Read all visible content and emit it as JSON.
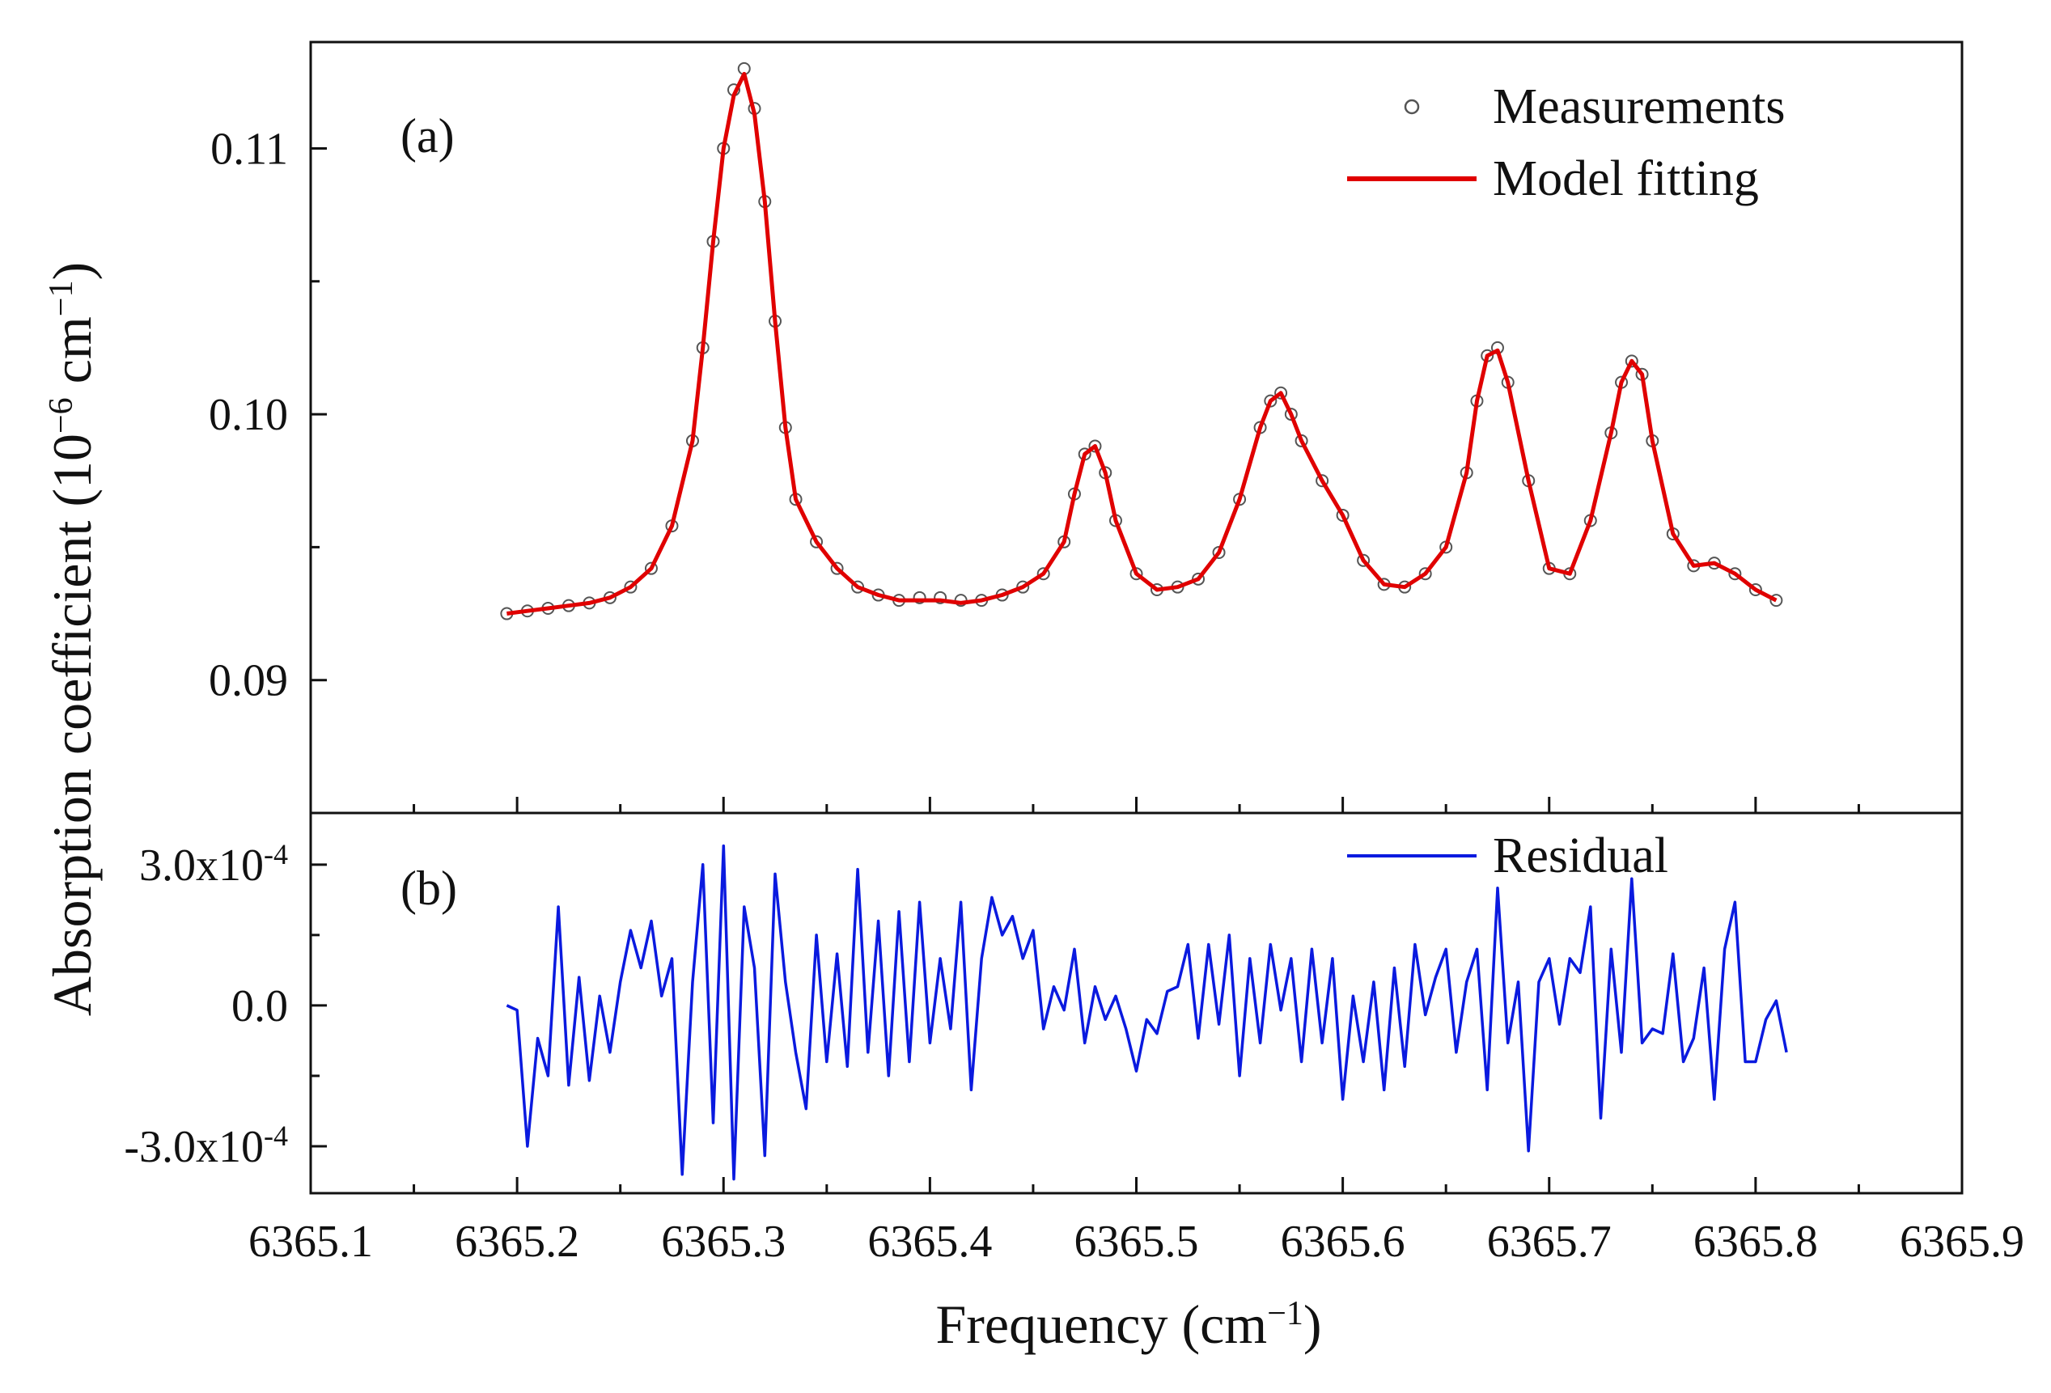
{
  "chart_data": [
    {
      "panel": "a",
      "type": "line",
      "panel_label": "(a)",
      "ylabel": "Absorption coefficient (10",
      "ylabel_sup": "−6",
      "ylabel_unit": " cm",
      "ylabel_unit_sup": "−1",
      "ylabel_close": ")",
      "xlim": [
        6365.1,
        6365.9
      ],
      "ylim": [
        0.085,
        0.114
      ],
      "yticks": [
        {
          "value": 0.09,
          "label": "0.09"
        },
        {
          "value": 0.1,
          "label": "0.10"
        },
        {
          "value": 0.11,
          "label": "0.11"
        }
      ],
      "grid": false,
      "legend_position": "top-right",
      "series": [
        {
          "name": "Measurements",
          "style": "open-circle-markers",
          "color": "#555555",
          "x": [
            6365.195,
            6365.205,
            6365.215,
            6365.225,
            6365.235,
            6365.245,
            6365.255,
            6365.265,
            6365.275,
            6365.285,
            6365.29,
            6365.295,
            6365.3,
            6365.305,
            6365.31,
            6365.315,
            6365.32,
            6365.325,
            6365.33,
            6365.335,
            6365.345,
            6365.355,
            6365.365,
            6365.375,
            6365.385,
            6365.395,
            6365.405,
            6365.415,
            6365.425,
            6365.435,
            6365.445,
            6365.455,
            6365.465,
            6365.47,
            6365.475,
            6365.48,
            6365.485,
            6365.49,
            6365.5,
            6365.51,
            6365.52,
            6365.53,
            6365.54,
            6365.55,
            6365.56,
            6365.565,
            6365.57,
            6365.575,
            6365.58,
            6365.59,
            6365.6,
            6365.61,
            6365.62,
            6365.63,
            6365.64,
            6365.65,
            6365.66,
            6365.665,
            6365.67,
            6365.675,
            6365.68,
            6365.69,
            6365.7,
            6365.71,
            6365.72,
            6365.73,
            6365.735,
            6365.74,
            6365.745,
            6365.75,
            6365.76,
            6365.77,
            6365.78,
            6365.79,
            6365.8,
            6365.81
          ],
          "y": [
            0.0925,
            0.0926,
            0.0927,
            0.0928,
            0.0929,
            0.0931,
            0.0935,
            0.0942,
            0.0958,
            0.099,
            0.1025,
            0.1065,
            0.11,
            0.1122,
            0.113,
            0.1115,
            0.108,
            0.1035,
            0.0995,
            0.0968,
            0.0952,
            0.0942,
            0.0935,
            0.0932,
            0.093,
            0.0931,
            0.0931,
            0.093,
            0.093,
            0.0932,
            0.0935,
            0.094,
            0.0952,
            0.097,
            0.0985,
            0.0988,
            0.0978,
            0.096,
            0.094,
            0.0934,
            0.0935,
            0.0938,
            0.0948,
            0.0968,
            0.0995,
            0.1005,
            0.1008,
            0.1,
            0.099,
            0.0975,
            0.0962,
            0.0945,
            0.0936,
            0.0935,
            0.094,
            0.095,
            0.0978,
            0.1005,
            0.1022,
            0.1025,
            0.1012,
            0.0975,
            0.0942,
            0.094,
            0.096,
            0.0993,
            0.1012,
            0.102,
            0.1015,
            0.099,
            0.0955,
            0.0943,
            0.0944,
            0.094,
            0.0934,
            0.093
          ]
        },
        {
          "name": "Model fitting",
          "style": "line",
          "color": "#e00000",
          "x": [
            6365.195,
            6365.205,
            6365.215,
            6365.225,
            6365.235,
            6365.245,
            6365.255,
            6365.265,
            6365.275,
            6365.285,
            6365.29,
            6365.295,
            6365.3,
            6365.305,
            6365.31,
            6365.315,
            6365.32,
            6365.325,
            6365.33,
            6365.335,
            6365.345,
            6365.355,
            6365.365,
            6365.375,
            6365.385,
            6365.395,
            6365.405,
            6365.415,
            6365.425,
            6365.435,
            6365.445,
            6365.455,
            6365.465,
            6365.47,
            6365.475,
            6365.48,
            6365.485,
            6365.49,
            6365.5,
            6365.51,
            6365.52,
            6365.53,
            6365.54,
            6365.55,
            6365.56,
            6365.565,
            6365.57,
            6365.575,
            6365.58,
            6365.59,
            6365.6,
            6365.61,
            6365.62,
            6365.63,
            6365.64,
            6365.65,
            6365.66,
            6365.665,
            6365.67,
            6365.675,
            6365.68,
            6365.69,
            6365.7,
            6365.71,
            6365.72,
            6365.73,
            6365.735,
            6365.74,
            6365.745,
            6365.75,
            6365.76,
            6365.77,
            6365.78,
            6365.79,
            6365.8,
            6365.81
          ],
          "y": [
            0.0925,
            0.0926,
            0.0927,
            0.0928,
            0.0929,
            0.0931,
            0.0935,
            0.0942,
            0.0958,
            0.099,
            0.1025,
            0.1065,
            0.11,
            0.112,
            0.1128,
            0.1113,
            0.108,
            0.1035,
            0.0995,
            0.0968,
            0.0952,
            0.0942,
            0.0935,
            0.0932,
            0.093,
            0.093,
            0.093,
            0.0929,
            0.093,
            0.0932,
            0.0935,
            0.094,
            0.0952,
            0.097,
            0.0985,
            0.0988,
            0.0978,
            0.096,
            0.094,
            0.0934,
            0.0935,
            0.0938,
            0.0948,
            0.0968,
            0.0995,
            0.1005,
            0.1008,
            0.1,
            0.099,
            0.0975,
            0.0962,
            0.0945,
            0.0936,
            0.0935,
            0.094,
            0.095,
            0.0978,
            0.1005,
            0.1022,
            0.1024,
            0.1012,
            0.0975,
            0.0942,
            0.094,
            0.096,
            0.0993,
            0.1012,
            0.102,
            0.1015,
            0.099,
            0.0955,
            0.0943,
            0.0944,
            0.094,
            0.0934,
            0.093
          ]
        }
      ]
    },
    {
      "panel": "b",
      "type": "line",
      "panel_label": "(b)",
      "xlabel": "Frequency (cm",
      "xlabel_sup": "−1",
      "xlabel_close": ")",
      "xlim": [
        6365.1,
        6365.9
      ],
      "ylim": [
        -0.0004,
        0.00041
      ],
      "xticks": [
        {
          "value": 6365.1,
          "label": "6365.1"
        },
        {
          "value": 6365.2,
          "label": "6365.2"
        },
        {
          "value": 6365.3,
          "label": "6365.3"
        },
        {
          "value": 6365.4,
          "label": "6365.4"
        },
        {
          "value": 6365.5,
          "label": "6365.5"
        },
        {
          "value": 6365.6,
          "label": "6365.6"
        },
        {
          "value": 6365.7,
          "label": "6365.7"
        },
        {
          "value": 6365.8,
          "label": "6365.8"
        },
        {
          "value": 6365.9,
          "label": "6365.9"
        }
      ],
      "yticks": [
        {
          "value": 0.0003,
          "label": "3.0x10",
          "sup": "-4"
        },
        {
          "value": 0.0,
          "label": "0.0",
          "sup": ""
        },
        {
          "value": -0.0003,
          "label": "-3.0x10",
          "sup": "-4"
        }
      ],
      "grid": false,
      "legend_position": "top-right",
      "series": [
        {
          "name": "Residual",
          "style": "line",
          "color": "#0a1adf",
          "x": [
            6365.195,
            6365.2,
            6365.205,
            6365.21,
            6365.215,
            6365.22,
            6365.225,
            6365.23,
            6365.235,
            6365.24,
            6365.245,
            6365.25,
            6365.255,
            6365.26,
            6365.265,
            6365.27,
            6365.275,
            6365.28,
            6365.285,
            6365.29,
            6365.295,
            6365.3,
            6365.305,
            6365.31,
            6365.315,
            6365.32,
            6365.325,
            6365.33,
            6365.335,
            6365.34,
            6365.345,
            6365.35,
            6365.355,
            6365.36,
            6365.365,
            6365.37,
            6365.375,
            6365.38,
            6365.385,
            6365.39,
            6365.395,
            6365.4,
            6365.405,
            6365.41,
            6365.415,
            6365.42,
            6365.425,
            6365.43,
            6365.435,
            6365.44,
            6365.445,
            6365.45,
            6365.455,
            6365.46,
            6365.465,
            6365.47,
            6365.475,
            6365.48,
            6365.485,
            6365.49,
            6365.495,
            6365.5,
            6365.505,
            6365.51,
            6365.515,
            6365.52,
            6365.525,
            6365.53,
            6365.535,
            6365.54,
            6365.545,
            6365.55,
            6365.555,
            6365.56,
            6365.565,
            6365.57,
            6365.575,
            6365.58,
            6365.585,
            6365.59,
            6365.595,
            6365.6,
            6365.605,
            6365.61,
            6365.615,
            6365.62,
            6365.625,
            6365.63,
            6365.635,
            6365.64,
            6365.645,
            6365.65,
            6365.655,
            6365.66,
            6365.665,
            6365.67,
            6365.675,
            6365.68,
            6365.685,
            6365.69,
            6365.695,
            6365.7,
            6365.705,
            6365.71,
            6365.715,
            6365.72,
            6365.725,
            6365.73,
            6365.735,
            6365.74,
            6365.745,
            6365.75,
            6365.755,
            6365.76,
            6365.765,
            6365.77,
            6365.775,
            6365.78,
            6365.785,
            6365.79,
            6365.795,
            6365.8,
            6365.805,
            6365.81,
            6365.815
          ],
          "y": [
            0.0,
            -1e-05,
            -0.0003,
            -7e-05,
            -0.00015,
            0.00021,
            -0.00017,
            6e-05,
            -0.00016,
            2e-05,
            -0.0001,
            5e-05,
            0.00016,
            8e-05,
            0.00018,
            2e-05,
            0.0001,
            -0.00036,
            5e-05,
            0.0003,
            -0.00025,
            0.00034,
            -0.00037,
            0.00021,
            8e-05,
            -0.00032,
            0.00028,
            5e-05,
            -0.0001,
            -0.00022,
            0.00015,
            -0.00012,
            0.00011,
            -0.00013,
            0.00029,
            -0.0001,
            0.00018,
            -0.00015,
            0.0002,
            -0.00012,
            0.00022,
            -8e-05,
            0.0001,
            -5e-05,
            0.00022,
            -0.00018,
            0.0001,
            0.00023,
            0.00015,
            0.00019,
            0.0001,
            0.00016,
            -5e-05,
            4e-05,
            -1e-05,
            0.00012,
            -8e-05,
            4e-05,
            -3e-05,
            2e-05,
            -5e-05,
            -0.00014,
            -3e-05,
            -6e-05,
            3e-05,
            4e-05,
            0.00013,
            -7e-05,
            0.00013,
            -4e-05,
            0.00015,
            -0.00015,
            0.0001,
            -8e-05,
            0.00013,
            -1e-05,
            0.0001,
            -0.00012,
            0.00012,
            -8e-05,
            0.0001,
            -0.0002,
            2e-05,
            -0.00012,
            5e-05,
            -0.00018,
            8e-05,
            -0.00013,
            0.00013,
            -2e-05,
            6e-05,
            0.00012,
            -0.0001,
            5e-05,
            0.00012,
            -0.00018,
            0.00025,
            -8e-05,
            5e-05,
            -0.00031,
            5e-05,
            0.0001,
            -4e-05,
            0.0001,
            7e-05,
            0.00021,
            -0.00024,
            0.00012,
            -0.0001,
            0.00027,
            -8e-05,
            -5e-05,
            -6e-05,
            0.00011,
            -0.00012,
            -7e-05,
            8e-05,
            -0.0002,
            0.00012,
            0.00022,
            -0.00012,
            -0.00012,
            -3e-05,
            1e-05,
            -0.0001
          ]
        }
      ]
    }
  ]
}
